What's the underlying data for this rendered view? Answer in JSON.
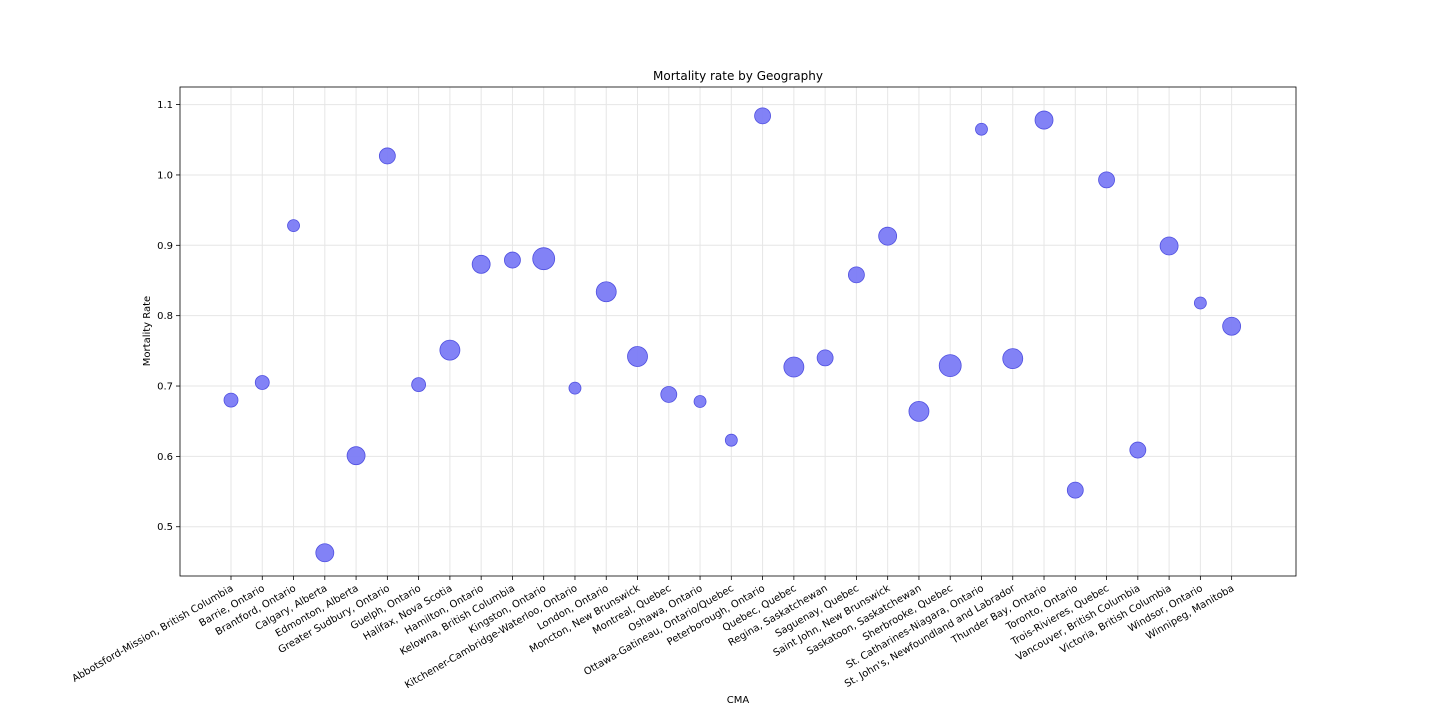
{
  "chart_data": {
    "type": "scatter",
    "title": "Mortality rate by Geography",
    "xlabel": "CMA",
    "ylabel": "Mortality Rate",
    "ylim": [
      0.43,
      1.125
    ],
    "yticks": [
      0.5,
      0.6,
      0.7,
      0.8,
      0.9,
      1.0,
      1.1
    ],
    "grid": true,
    "marker_color": "#7b7bf5",
    "marker_edge_color": "#4f4fe0",
    "categories": [
      "Abbotsford-Mission, British Columbia",
      "Barrie, Ontario",
      "Brantford, Ontario",
      "Calgary, Alberta",
      "Edmonton, Alberta",
      "Greater Sudbury, Ontario",
      "Guelph, Ontario",
      "Halifax, Nova Scotia",
      "Hamilton, Ontario",
      "Kelowna, British Columbia",
      "Kingston, Ontario",
      "Kitchener-Cambridge-Waterloo, Ontario",
      "London, Ontario",
      "Moncton, New Brunswick",
      "Montreal, Quebec",
      "Oshawa, Ontario",
      "Ottawa-Gatineau, Ontario/Quebec",
      "Peterborough, Ontario",
      "Quebec, Quebec",
      "Regina, Saskatchewan",
      "Saguenay, Quebec",
      "Saint John, New Brunswick",
      "Saskatoon, Saskatchewan",
      "Sherbrooke, Quebec",
      "St. Catharines-Niagara, Ontario",
      "St. John's, Newfoundland and Labrador",
      "Thunder Bay, Ontario",
      "Toronto, Ontario",
      "Trois-Rivieres, Quebec",
      "Vancouver, British Columbia",
      "Victoria, British Columbia",
      "Windsor, Ontario",
      "Winnipeg, Manitoba"
    ],
    "values": [
      0.68,
      0.705,
      0.928,
      0.463,
      0.601,
      1.027,
      0.702,
      0.751,
      0.873,
      0.879,
      0.881,
      0.697,
      0.834,
      0.742,
      0.688,
      0.678,
      0.623,
      1.084,
      0.727,
      0.74,
      0.858,
      0.913,
      0.664,
      0.729,
      1.065,
      0.739,
      1.078,
      0.552,
      0.993,
      0.609,
      0.899,
      0.818,
      0.785
    ],
    "sizes": [
      7,
      7,
      6,
      9,
      9,
      8,
      7,
      10,
      9,
      8,
      11,
      6,
      10,
      10,
      8,
      6,
      6,
      8,
      10,
      8,
      8,
      9,
      10,
      11,
      6,
      10,
      9,
      8,
      8,
      8,
      9,
      6,
      9
    ]
  }
}
